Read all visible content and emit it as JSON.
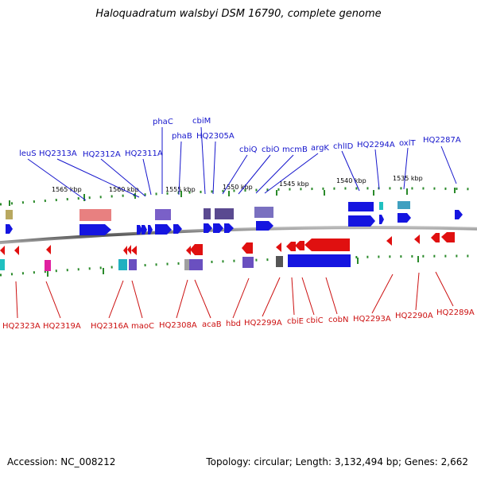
{
  "title": "Haloquadratum walsbyi DSM 16790, complete genome",
  "footer": {
    "accession": "Accession: NC_008212",
    "topology": "Topology: circular; Length: 3,132,494 bp; Genes: 2,662"
  },
  "kbp_labels": [
    "1565 kbp",
    "1560 kbp",
    "1555 kbp",
    "1550 kbp",
    "1545 kbp",
    "1540 kbp",
    "1535 kbp"
  ],
  "top_gene_labels": [
    "leuS",
    "HQ2313A",
    "HQ2312A",
    "HQ2311A",
    "phaC",
    "phaB",
    "cbiM",
    "HQ2305A",
    "cbiQ",
    "cbiO",
    "mcmB",
    "argK",
    "chlID",
    "HQ2294A",
    "oxlT",
    "HQ2287A"
  ],
  "bottom_gene_labels": [
    "HQ2323A",
    "HQ2319A",
    "HQ2316A",
    "maoC",
    "HQ2308A",
    "acaB",
    "hbd",
    "HQ2299A",
    "cbiE",
    "cbiC",
    "cobN",
    "HQ2293A",
    "HQ2290A",
    "HQ2289A"
  ],
  "colors": {
    "forward_strand": "#1515e0",
    "reverse_strand": "#e01010",
    "backbone": "#555555",
    "tick": "#2a8a2a",
    "label_top": "#1515cc",
    "label_bottom": "#cc1010"
  }
}
